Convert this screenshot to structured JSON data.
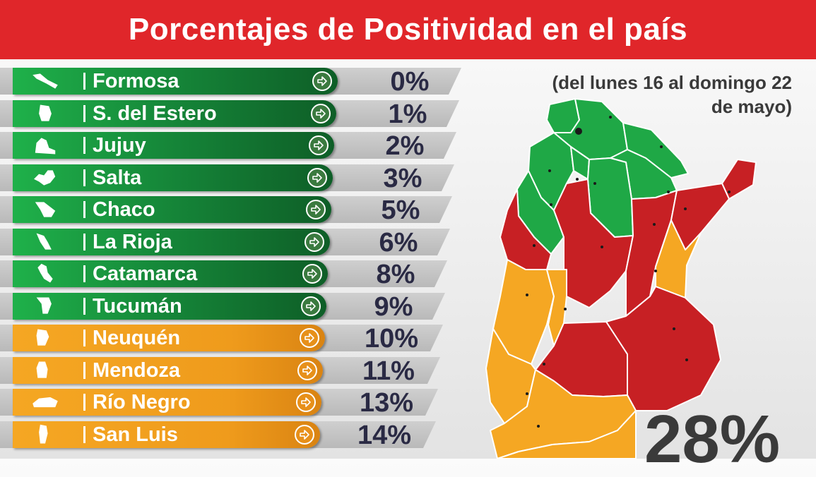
{
  "header": {
    "title": "Porcentajes de Positividad en el país"
  },
  "subtitle": {
    "line1": "(del lunes 16 al domingo 22",
    "line2": "de mayo)"
  },
  "colors": {
    "header_red": "#e0262a",
    "green": "#1fa846",
    "orange": "#f5a723",
    "red": "#c72024"
  },
  "provinces": [
    {
      "name": "Formosa",
      "value": "0%",
      "level": "green",
      "icon": "formosa-map-icon"
    },
    {
      "name": "S. del Estero",
      "value": "1%",
      "level": "green",
      "icon": "santiago-del-estero-map-icon"
    },
    {
      "name": "Jujuy",
      "value": "2%",
      "level": "green",
      "icon": "jujuy-map-icon"
    },
    {
      "name": "Salta",
      "value": "3%",
      "level": "green",
      "icon": "salta-map-icon"
    },
    {
      "name": "Chaco",
      "value": "5%",
      "level": "green",
      "icon": "chaco-map-icon"
    },
    {
      "name": "La Rioja",
      "value": "6%",
      "level": "green",
      "icon": "la-rioja-map-icon"
    },
    {
      "name": "Catamarca",
      "value": "8%",
      "level": "green",
      "icon": "catamarca-map-icon"
    },
    {
      "name": "Tucumán",
      "value": "9%",
      "level": "green",
      "icon": "tucuman-map-icon"
    },
    {
      "name": "Neuquén",
      "value": "10%",
      "level": "orange",
      "icon": "neuquen-map-icon"
    },
    {
      "name": "Mendoza",
      "value": "11%",
      "level": "orange",
      "icon": "mendoza-map-icon"
    },
    {
      "name": "Río Negro",
      "value": "13%",
      "level": "orange",
      "icon": "rio-negro-map-icon"
    },
    {
      "name": "San Luis",
      "value": "14%",
      "level": "orange",
      "icon": "san-luis-map-icon"
    }
  ],
  "total": {
    "value": "28%"
  }
}
